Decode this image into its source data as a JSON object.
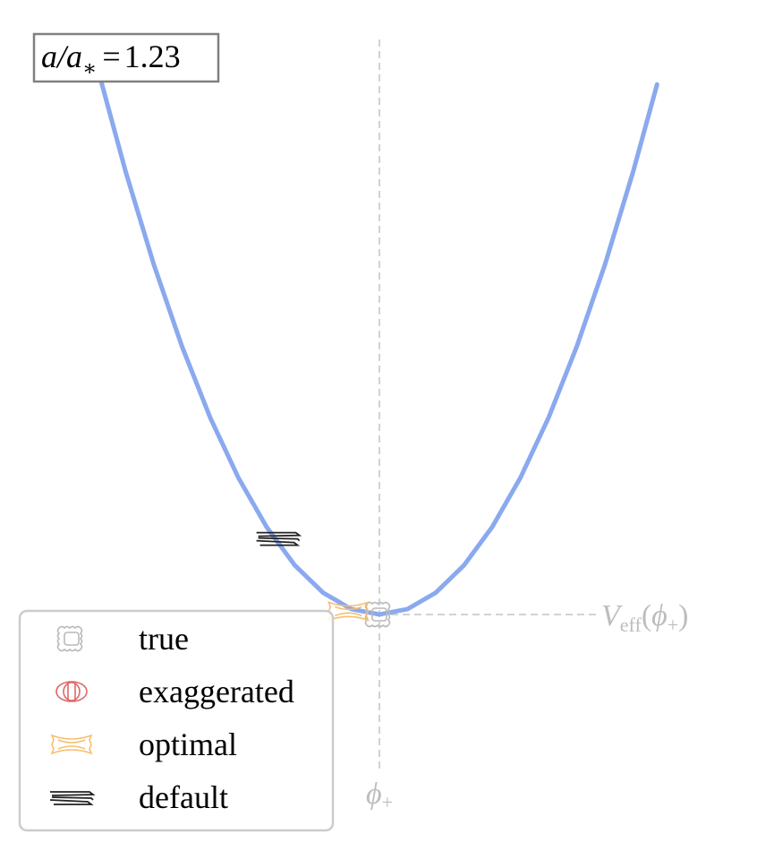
{
  "chart_data": {
    "type": "line",
    "title": "",
    "xlabel": "",
    "ylabel": "",
    "grid": false,
    "axes_visible": false,
    "annotation_box": {
      "ratio_label": "a/a",
      "subscript": "∗",
      "equals": "=",
      "value": "1.23"
    },
    "vline_label": {
      "symbol": "ϕ",
      "subscript": "+"
    },
    "hline_label": {
      "main": "V",
      "subscript": "eff",
      "arg_symbol": "ϕ",
      "arg_subscript": "+"
    },
    "curve": {
      "color": "#8aa9ee",
      "x": [
        -1.0,
        -0.9,
        -0.8,
        -0.7,
        -0.6,
        -0.5,
        -0.4,
        -0.3,
        -0.2,
        -0.1,
        0.0,
        0.1,
        0.2,
        0.3,
        0.4,
        0.5,
        0.6,
        0.7,
        0.8,
        0.9,
        0.985
      ],
      "y": [
        1.0,
        0.81,
        0.64,
        0.49,
        0.36,
        0.25,
        0.16,
        0.09,
        0.04,
        0.01,
        0.0,
        0.01,
        0.04,
        0.09,
        0.16,
        0.25,
        0.36,
        0.49,
        0.64,
        0.81,
        0.97
      ]
    },
    "markers": [
      {
        "name": "true",
        "shape": "rounded-square",
        "color": "#b9b9b9",
        "x": 0.0,
        "y": 0.0
      },
      {
        "name": "optimal",
        "shape": "bowtie",
        "color": "#f7bd6f",
        "x": -0.11,
        "y": 0.006
      },
      {
        "name": "default",
        "shape": "stack",
        "color": "#222222",
        "x": -0.36,
        "y": 0.14
      }
    ],
    "legend": {
      "position": "lower-left",
      "entries": [
        {
          "label": "true",
          "shape": "rounded-square",
          "color": "#b9b9b9"
        },
        {
          "label": "exaggerated",
          "shape": "oval",
          "color": "#e06868"
        },
        {
          "label": "optimal",
          "shape": "bowtie",
          "color": "#f7bd6f"
        },
        {
          "label": "default",
          "shape": "stack",
          "color": "#222222"
        }
      ]
    }
  },
  "colors": {
    "curve": "#8aa9ee",
    "guides": "#d2d2d2",
    "guide_labels": "#bdbdbd",
    "annotation_border": "#808080",
    "legend_border": "#cccccc"
  }
}
